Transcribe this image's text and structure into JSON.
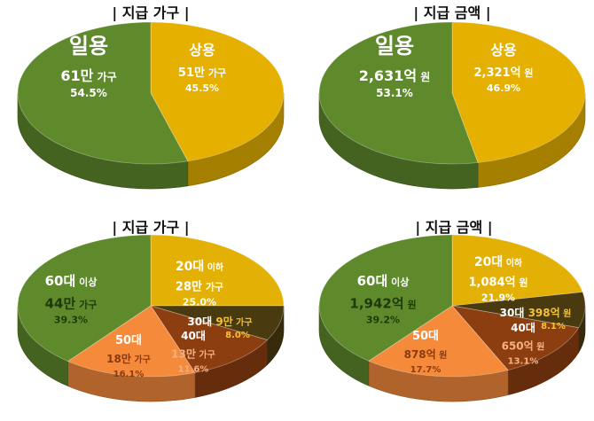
{
  "chart_data": [
    {
      "type": "pie",
      "title": "| 지급 가구 |",
      "slices": [
        {
          "category": "상용",
          "value_text": "51만",
          "unit": "가구",
          "percent": 45.5,
          "percent_text": "45.5%",
          "color": "#E5B000",
          "text_color": "#FFFFFF"
        },
        {
          "category": "일용",
          "value_text": "61만",
          "unit": "가구",
          "percent": 54.5,
          "percent_text": "54.5%",
          "color": "#5F8A2C",
          "text_color": "#FFFFFF"
        }
      ]
    },
    {
      "type": "pie",
      "title": "| 지급 금액 |",
      "slices": [
        {
          "category": "상용",
          "value_text": "2,321억",
          "unit": "원",
          "percent": 46.9,
          "percent_text": "46.9%",
          "color": "#E5B000",
          "text_color": "#FFFFFF"
        },
        {
          "category": "일용",
          "value_text": "2,631억",
          "unit": "원",
          "percent": 53.1,
          "percent_text": "53.1%",
          "color": "#5F8A2C",
          "text_color": "#FFFFFF"
        }
      ]
    },
    {
      "type": "pie",
      "title": "| 지급 가구 |",
      "slices": [
        {
          "category": "20대",
          "suffix": "이하",
          "value_text": "28만",
          "unit": "가구",
          "percent": 25.0,
          "percent_text": "25.0%",
          "color": "#E3B106",
          "text_color": "#FFFFFF"
        },
        {
          "category": "30대",
          "value_text": "9만",
          "unit": "가구",
          "percent": 8.0,
          "percent_text": "8.0%",
          "color": "#4A3A10",
          "text_color": "#FFFFFF",
          "value_color": "#F3C23A"
        },
        {
          "category": "40대",
          "value_text": "13만",
          "unit": "가구",
          "percent": 11.6,
          "percent_text": "11.6%",
          "color": "#8C3E10",
          "text_color": "#FFFFFF",
          "value_color": "#F5B183"
        },
        {
          "category": "50대",
          "value_text": "18만",
          "unit": "가구",
          "percent": 16.1,
          "percent_text": "16.1%",
          "color": "#F58A3A",
          "text_color": "#FFFFFF",
          "value_color": "#8A3A0E"
        },
        {
          "category": "60대",
          "suffix": "이상",
          "value_text": "44만",
          "unit": "가구",
          "percent": 39.3,
          "percent_text": "39.3%",
          "color": "#5F8A2C",
          "text_color": "#FFFFFF",
          "value_color": "#1E3A0A"
        }
      ]
    },
    {
      "type": "pie",
      "title": "| 지급 금액 |",
      "slices": [
        {
          "category": "20대",
          "suffix": "이하",
          "value_text": "1,084억",
          "unit": "원",
          "percent": 21.9,
          "percent_text": "21.9%",
          "color": "#E3B106",
          "text_color": "#FFFFFF"
        },
        {
          "category": "30대",
          "value_text": "398억",
          "unit": "원",
          "percent": 8.1,
          "percent_text": "8.1%",
          "color": "#4A3A10",
          "text_color": "#FFFFFF",
          "value_color": "#F3C23A"
        },
        {
          "category": "40대",
          "value_text": "650억",
          "unit": "원",
          "percent": 13.1,
          "percent_text": "13.1%",
          "color": "#8C3E10",
          "text_color": "#FFFFFF",
          "value_color": "#F5B183"
        },
        {
          "category": "50대",
          "value_text": "878억",
          "unit": "원",
          "percent": 17.7,
          "percent_text": "17.7%",
          "color": "#F58A3A",
          "text_color": "#FFFFFF",
          "value_color": "#8A3A0E"
        },
        {
          "category": "60대",
          "suffix": "이상",
          "value_text": "1,942억",
          "unit": "원",
          "percent": 39.2,
          "percent_text": "39.2%",
          "color": "#5F8A2C",
          "text_color": "#FFFFFF",
          "value_color": "#1E3A0A"
        }
      ]
    }
  ]
}
